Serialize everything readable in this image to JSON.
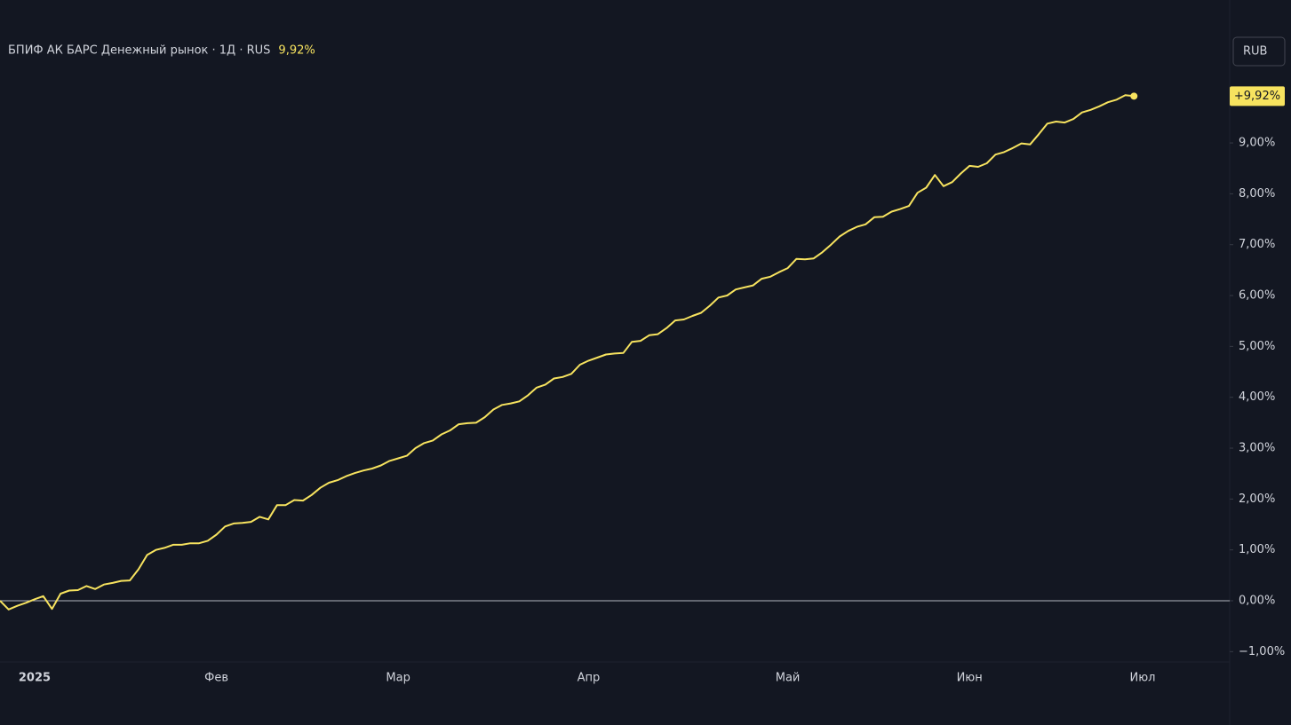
{
  "chart_data": {
    "type": "line",
    "title": "БПИФ АК БАРС Денежный рынок · 1Д · RUS",
    "legend_value": "9,92%",
    "last_value_label": "+9,92%",
    "currency_button": "RUB",
    "categories": [
      null,
      null,
      null,
      null,
      "2025",
      null,
      null,
      null,
      null,
      null,
      null,
      null,
      null,
      null,
      null,
      null,
      null,
      null,
      null,
      null,
      null,
      null,
      null,
      null,
      null,
      "Фев",
      null,
      null,
      null,
      null,
      null,
      null,
      null,
      null,
      null,
      null,
      null,
      null,
      null,
      null,
      null,
      null,
      null,
      null,
      null,
      null,
      "Мар",
      null,
      null,
      null,
      null,
      null,
      null,
      null,
      null,
      null,
      null,
      null,
      null,
      null,
      null,
      null,
      null,
      null,
      null,
      null,
      null,
      null,
      "Апр",
      null,
      null,
      null,
      null,
      null,
      null,
      null,
      null,
      null,
      null,
      null,
      null,
      null,
      null,
      null,
      null,
      null,
      null,
      null,
      null,
      null,
      null,
      "Май",
      null,
      null,
      null,
      null,
      null,
      null,
      null,
      null,
      null,
      null,
      null,
      null,
      null,
      null,
      null,
      null,
      null,
      null,
      null,
      null,
      "Июн",
      null,
      null,
      null,
      null,
      null,
      null,
      null,
      null,
      null,
      null,
      null,
      null,
      null,
      null,
      null,
      null,
      null,
      null,
      null,
      "Июл"
    ],
    "series": [
      {
        "name": "БПИФ АК БАРС Денежный рынок",
        "color": "#f7e35f",
        "values": [
          0,
          -0.17,
          -0.1,
          -0.04,
          0.03,
          0.09,
          -0.16,
          0.14,
          0.2,
          0.21,
          0.29,
          0.23,
          0.32,
          0.35,
          0.39,
          0.4,
          0.62,
          0.9,
          1.0,
          1.04,
          1.1,
          1.1,
          1.13,
          1.13,
          1.18,
          1.3,
          1.46,
          1.52,
          1.53,
          1.55,
          1.65,
          1.6,
          1.88,
          1.88,
          1.98,
          1.97,
          2.08,
          2.22,
          2.32,
          2.37,
          2.45,
          2.51,
          2.56,
          2.6,
          2.66,
          2.75,
          2.8,
          2.85,
          3.0,
          3.1,
          3.15,
          3.27,
          3.35,
          3.47,
          3.49,
          3.5,
          3.61,
          3.76,
          3.85,
          3.88,
          3.92,
          4.04,
          4.19,
          4.25,
          4.37,
          4.4,
          4.46,
          4.64,
          4.72,
          4.78,
          4.84,
          4.86,
          4.87,
          5.09,
          5.11,
          5.22,
          5.24,
          5.36,
          5.51,
          5.53,
          5.6,
          5.66,
          5.8,
          5.96,
          6.0,
          6.12,
          6.16,
          6.2,
          6.33,
          6.37,
          6.46,
          6.54,
          6.72,
          6.71,
          6.73,
          6.85,
          7.0,
          7.16,
          7.27,
          7.35,
          7.4,
          7.54,
          7.55,
          7.65,
          7.7,
          7.76,
          8.02,
          8.12,
          8.37,
          8.15,
          8.23,
          8.4,
          8.55,
          8.53,
          8.6,
          8.77,
          8.82,
          8.9,
          8.99,
          8.97,
          9.17,
          9.38,
          9.42,
          9.4,
          9.47,
          9.6,
          9.65,
          9.72,
          9.8,
          9.85,
          9.94,
          9.92,
          null
        ]
      }
    ],
    "ylim": [
      -1.2,
      10.4
    ],
    "yticks": [
      {
        "value": -1,
        "label": "−1,00%"
      },
      {
        "value": 0,
        "label": "0,00%"
      },
      {
        "value": 1,
        "label": "1,00%"
      },
      {
        "value": 2,
        "label": "2,00%"
      },
      {
        "value": 3,
        "label": "3,00%"
      },
      {
        "value": 4,
        "label": "4,00%"
      },
      {
        "value": 5,
        "label": "5,00%"
      },
      {
        "value": 6,
        "label": "6,00%"
      },
      {
        "value": 7,
        "label": "7,00%"
      },
      {
        "value": 8,
        "label": "8,00%"
      },
      {
        "value": 9,
        "label": "9,00%"
      }
    ],
    "grid": false
  }
}
